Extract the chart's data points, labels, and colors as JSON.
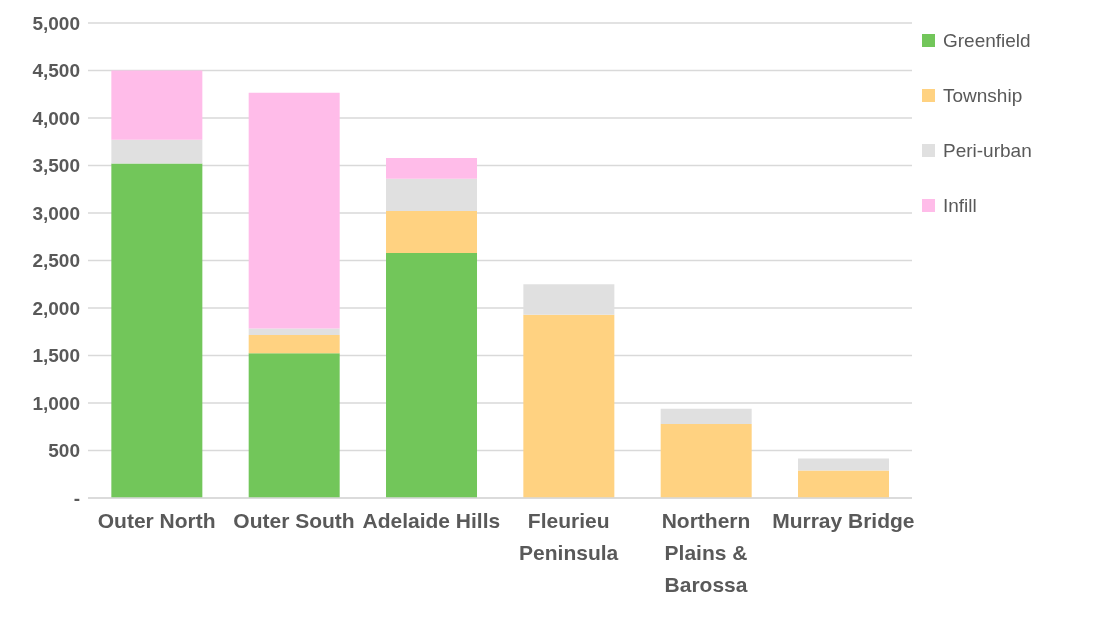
{
  "chart_data": {
    "type": "bar",
    "stacked": true,
    "categories": [
      "Outer North",
      "Outer South",
      "Adelaide Hills",
      "Fleurieu Peninsula",
      "Northern Plains & Barossa",
      "Murray Bridge"
    ],
    "series": [
      {
        "name": "Greenfield",
        "color": "#72c65a",
        "values": [
          3520,
          1525,
          2580,
          0,
          0,
          0
        ]
      },
      {
        "name": "Township",
        "color": "#ffd281",
        "values": [
          0,
          190,
          440,
          1930,
          780,
          290
        ]
      },
      {
        "name": "Peri-urban",
        "color": "#e0e0e0",
        "values": [
          250,
          70,
          340,
          320,
          160,
          125
        ]
      },
      {
        "name": "Infill",
        "color": "#ffbce9",
        "values": [
          730,
          2480,
          220,
          0,
          0,
          0
        ]
      }
    ],
    "ylim": [
      0,
      5000
    ],
    "yticks": [
      {
        "value": 0,
        "label": "-"
      },
      {
        "value": 500,
        "label": "500"
      },
      {
        "value": 1000,
        "label": "1,000"
      },
      {
        "value": 1500,
        "label": "1,500"
      },
      {
        "value": 2000,
        "label": "2,000"
      },
      {
        "value": 2500,
        "label": "2,500"
      },
      {
        "value": 3000,
        "label": "3,000"
      },
      {
        "value": 3500,
        "label": "3,500"
      },
      {
        "value": 4000,
        "label": "4,000"
      },
      {
        "value": 4500,
        "label": "4,500"
      },
      {
        "value": 5000,
        "label": "5,000"
      }
    ],
    "grid": "y",
    "legend": "right"
  }
}
